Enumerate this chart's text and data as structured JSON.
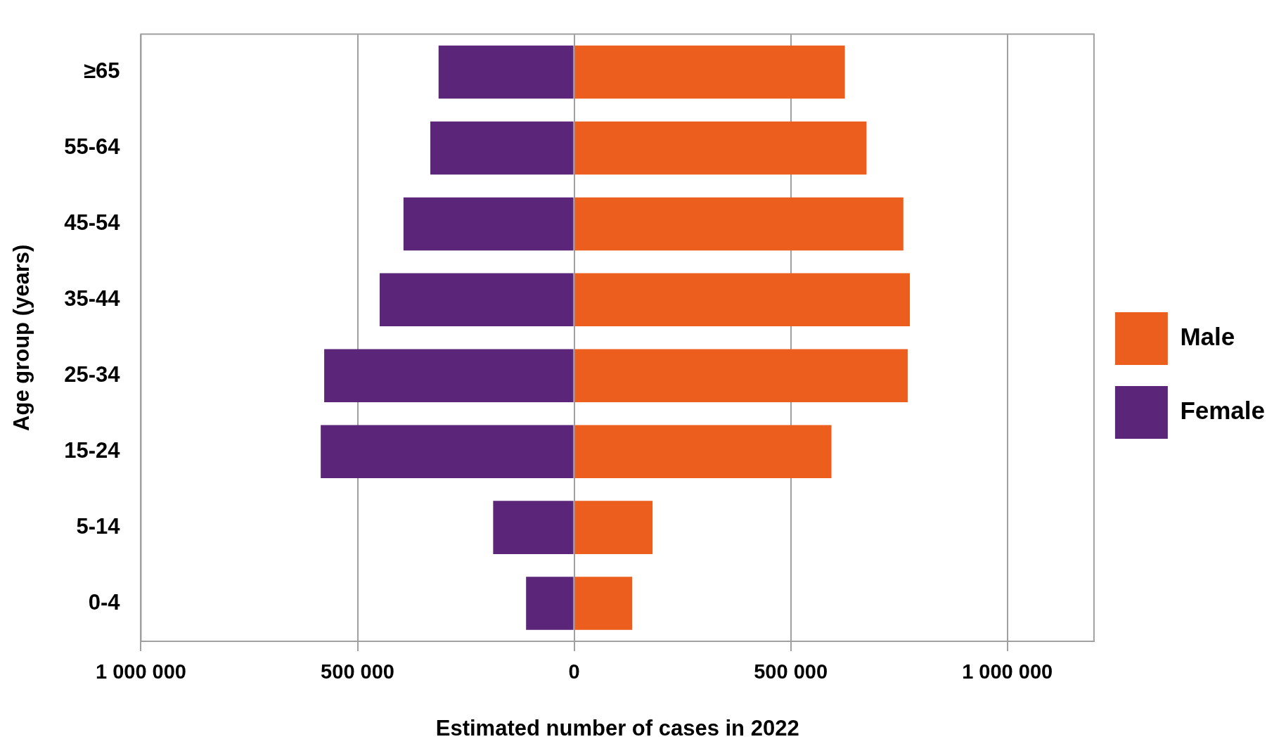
{
  "chart_data": {
    "type": "bar",
    "orientation": "horizontal",
    "stacked": true,
    "categories": [
      "≥65",
      "55-64",
      "45-54",
      "35-44",
      "25-34",
      "15-24",
      "5-14",
      "0-4"
    ],
    "series": [
      {
        "name": "Male",
        "color": "#eb5e1e",
        "values": [
          625000,
          675000,
          760000,
          775000,
          770000,
          594000,
          181000,
          134000
        ]
      },
      {
        "name": "Female",
        "color": "#5b2679",
        "values": [
          -313000,
          -332000,
          -394000,
          -449000,
          -577000,
          -585000,
          -187000,
          -111000
        ]
      }
    ],
    "xlim": [
      -1000000,
      1200000
    ],
    "xticks": [
      {
        "value": -1000000,
        "label": "1 000 000"
      },
      {
        "value": -500000,
        "label": "500 000"
      },
      0,
      {
        "value": 500000,
        "label": "500 000"
      },
      {
        "value": 1000000,
        "label": "1 000 000"
      }
    ],
    "xlabel": "Estimated number of cases in 2022",
    "ylabel": "Age group (years)",
    "grid": "x",
    "legend": "right"
  }
}
